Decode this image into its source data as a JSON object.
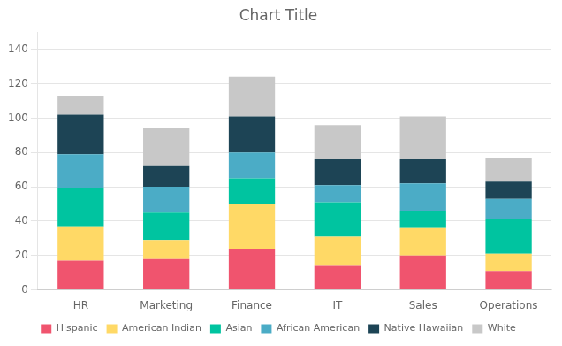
{
  "chart_data": {
    "type": "bar",
    "title": "Chart Title",
    "categories": [
      "HR",
      "Marketing",
      "Finance",
      "IT",
      "Sales",
      "Operations"
    ],
    "series": [
      {
        "name": "Hispanic",
        "color": "#f0546e",
        "values": [
          17,
          18,
          24,
          14,
          20,
          11
        ]
      },
      {
        "name": "American Indian",
        "color": "#ffd966",
        "values": [
          20,
          11,
          26,
          17,
          16,
          10
        ]
      },
      {
        "name": "Asian",
        "color": "#00c4a0",
        "values": [
          22,
          16,
          15,
          20,
          10,
          20
        ]
      },
      {
        "name": "African American",
        "color": "#4bacc6",
        "values": [
          20,
          15,
          15,
          10,
          16,
          12
        ]
      },
      {
        "name": "Native Hawaiian",
        "color": "#1d4455",
        "values": [
          23,
          12,
          21,
          15,
          14,
          10
        ]
      },
      {
        "name": "White",
        "color": "#c8c8c8",
        "values": [
          11,
          22,
          23,
          20,
          25,
          14
        ]
      }
    ],
    "ylim": [
      0,
      150
    ],
    "yticks": [
      0,
      20,
      40,
      60,
      80,
      100,
      120,
      140
    ],
    "grid": true,
    "stacked": true,
    "legend": "bottom"
  }
}
